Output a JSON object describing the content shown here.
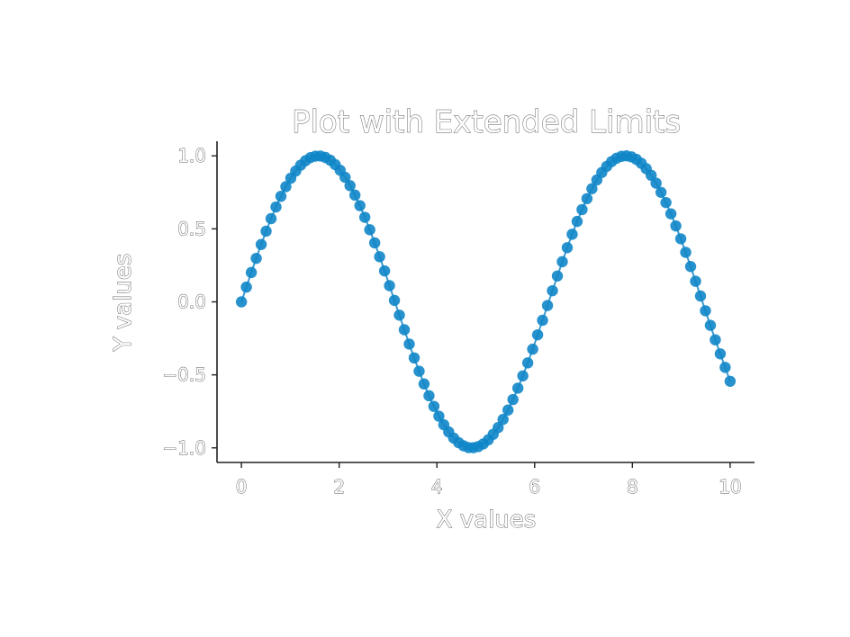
{
  "chart_data": {
    "type": "line",
    "title": "Plot with Extended Limits",
    "xlabel": "X values",
    "ylabel": "Y values",
    "xlim": [
      -0.5,
      10.5
    ],
    "ylim": [
      -1.1,
      1.1
    ],
    "x_ticks": [
      {
        "value": 0,
        "label": "0"
      },
      {
        "value": 2,
        "label": "2"
      },
      {
        "value": 4,
        "label": "4"
      },
      {
        "value": 6,
        "label": "6"
      },
      {
        "value": 8,
        "label": "8"
      },
      {
        "value": 10,
        "label": "10"
      }
    ],
    "y_ticks": [
      {
        "value": -1.0,
        "label": "−1.0"
      },
      {
        "value": -0.5,
        "label": "−0.5"
      },
      {
        "value": 0.0,
        "label": "0.0"
      },
      {
        "value": 0.5,
        "label": "0.5"
      },
      {
        "value": 1.0,
        "label": "1.0"
      }
    ],
    "grid": false,
    "series": [
      {
        "color": "#0f86c8",
        "marker": "circle",
        "x": [
          0.0,
          0.101,
          0.202,
          0.303,
          0.404,
          0.505,
          0.606,
          0.707,
          0.808,
          0.909,
          1.01,
          1.111,
          1.212,
          1.313,
          1.414,
          1.515,
          1.616,
          1.717,
          1.818,
          1.919,
          2.02,
          2.121,
          2.222,
          2.323,
          2.424,
          2.525,
          2.626,
          2.727,
          2.828,
          2.929,
          3.03,
          3.131,
          3.232,
          3.333,
          3.434,
          3.535,
          3.636,
          3.737,
          3.838,
          3.939,
          4.04,
          4.141,
          4.242,
          4.343,
          4.444,
          4.545,
          4.646,
          4.747,
          4.848,
          4.949,
          5.051,
          5.152,
          5.253,
          5.354,
          5.455,
          5.556,
          5.657,
          5.758,
          5.859,
          5.96,
          6.061,
          6.162,
          6.263,
          6.364,
          6.465,
          6.566,
          6.667,
          6.768,
          6.869,
          6.97,
          7.071,
          7.172,
          7.273,
          7.374,
          7.475,
          7.576,
          7.677,
          7.778,
          7.879,
          7.98,
          8.081,
          8.182,
          8.283,
          8.384,
          8.485,
          8.586,
          8.687,
          8.788,
          8.889,
          8.99,
          9.091,
          9.192,
          9.293,
          9.394,
          9.495,
          9.596,
          9.697,
          9.798,
          9.899,
          10.0
        ],
        "y": [
          0.0,
          0.101,
          0.201,
          0.298,
          0.393,
          0.484,
          0.57,
          0.65,
          0.723,
          0.789,
          0.847,
          0.896,
          0.936,
          0.967,
          0.988,
          0.998,
          0.999,
          0.989,
          0.97,
          0.94,
          0.901,
          0.853,
          0.796,
          0.731,
          0.659,
          0.579,
          0.494,
          0.404,
          0.309,
          0.212,
          0.111,
          0.01,
          -0.091,
          -0.191,
          -0.289,
          -0.384,
          -0.475,
          -0.562,
          -0.643,
          -0.716,
          -0.783,
          -0.842,
          -0.891,
          -0.933,
          -0.964,
          -0.986,
          -0.998,
          -0.999,
          -0.991,
          -0.973,
          -0.945,
          -0.907,
          -0.861,
          -0.805,
          -0.741,
          -0.669,
          -0.591,
          -0.507,
          -0.418,
          -0.324,
          -0.226,
          -0.126,
          -0.025,
          0.076,
          0.177,
          0.275,
          0.371,
          0.463,
          0.551,
          0.632,
          0.707,
          0.775,
          0.835,
          0.886,
          0.928,
          0.961,
          0.984,
          0.997,
          1.0,
          0.993,
          0.976,
          0.949,
          0.912,
          0.867,
          0.813,
          0.75,
          0.68,
          0.603,
          0.52,
          0.432,
          0.339,
          0.242,
          0.141,
          0.04,
          -0.061,
          -0.161,
          -0.26,
          -0.356,
          -0.449,
          -0.544
        ]
      }
    ]
  }
}
